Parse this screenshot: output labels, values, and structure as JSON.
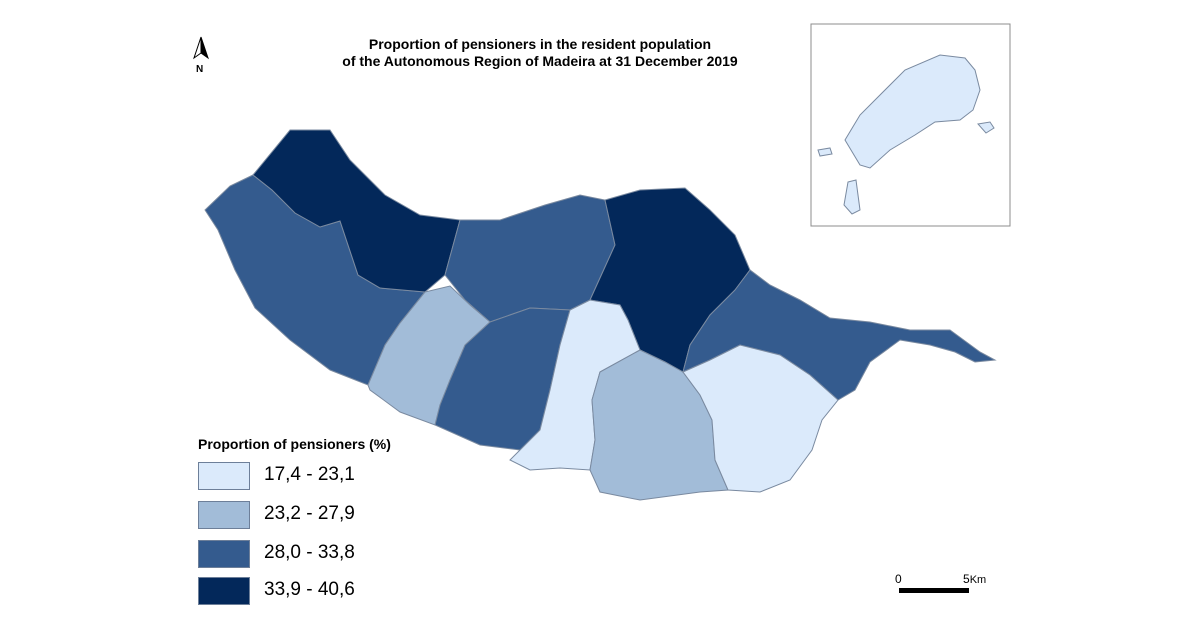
{
  "title": {
    "line1": "Proportion of pensioners in the resident population",
    "line2": "of the Autonomous Region of Madeira at 31 December 2019"
  },
  "north_arrow": {
    "label": "N"
  },
  "legend": {
    "title": "Proportion of pensioners (%)",
    "classes": [
      {
        "label": "17,4 - 23,1",
        "color": "#dbeafb"
      },
      {
        "label": "23,2 - 27,9",
        "color": "#a2bcd8"
      },
      {
        "label": "28,0 - 33,8",
        "color": "#345b8e"
      },
      {
        "label": "33,9 - 40,6",
        "color": "#03285a"
      }
    ]
  },
  "scale_bar": {
    "start_label": "0",
    "end_label": "5",
    "unit": "Km"
  },
  "inset": {
    "fill": "#dbeafb"
  },
  "municipalities": [
    {
      "class": 3
    },
    {
      "class": 4
    },
    {
      "class": 3
    },
    {
      "class": 4
    },
    {
      "class": 2
    },
    {
      "class": 3
    },
    {
      "class": 1
    },
    {
      "class": 2
    },
    {
      "class": 3
    },
    {
      "class": 1
    }
  ]
}
